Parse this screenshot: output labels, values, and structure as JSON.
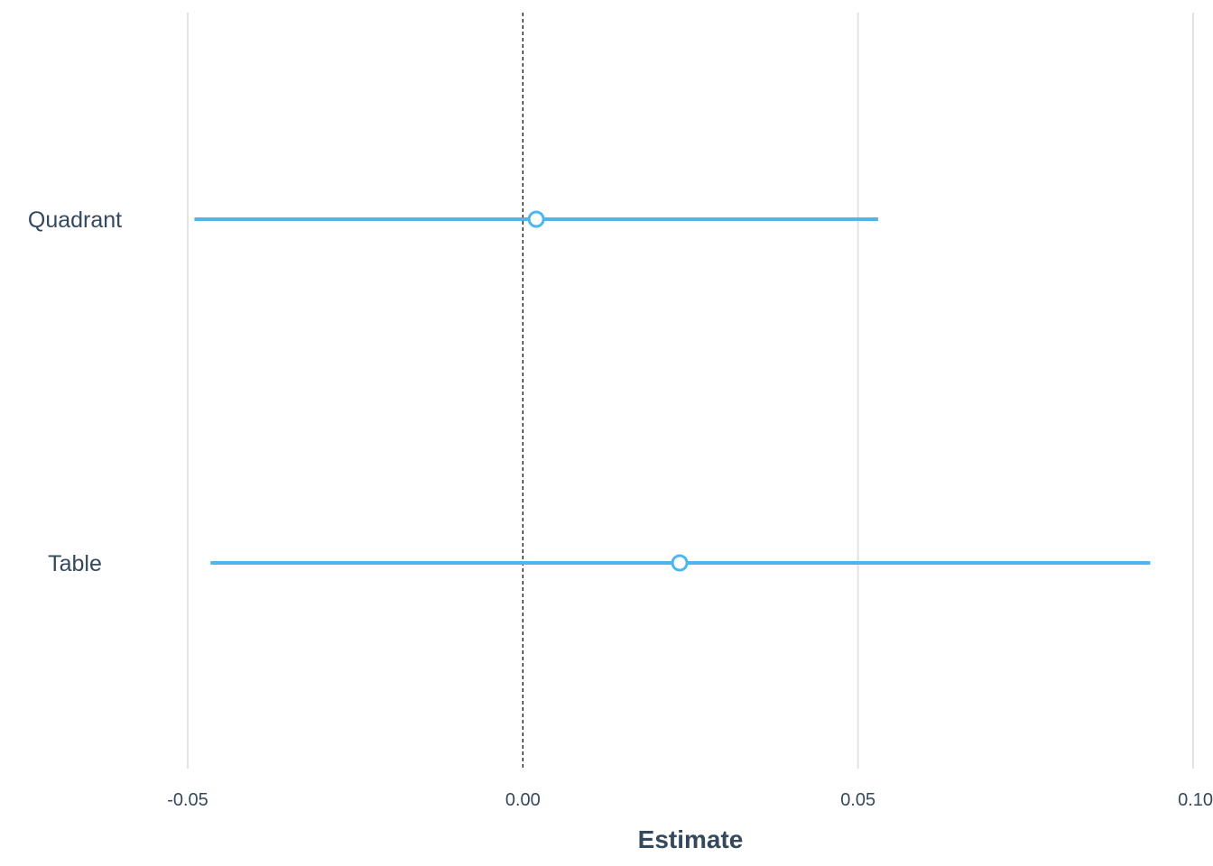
{
  "chart_data": {
    "type": "forest",
    "xlabel": "Estimate",
    "ylabel": "",
    "xlim": [
      -0.05,
      0.1
    ],
    "x_ticks": [
      -0.05,
      0.0,
      0.05,
      0.1
    ],
    "x_tick_labels": [
      "-0.05",
      "0.00",
      "0.05",
      "0.10"
    ],
    "reference_line": 0.0,
    "grid": "vertical major",
    "series_color": "#4db6ef",
    "grid_color": "#e3e3e3",
    "text_color": "#34495e",
    "points": [
      {
        "label": "Quadrant",
        "estimate": 0.002,
        "ci_low": -0.049,
        "ci_high": 0.053
      },
      {
        "label": "Table",
        "estimate": 0.0234,
        "ci_low": -0.0466,
        "ci_high": 0.0936
      }
    ]
  }
}
